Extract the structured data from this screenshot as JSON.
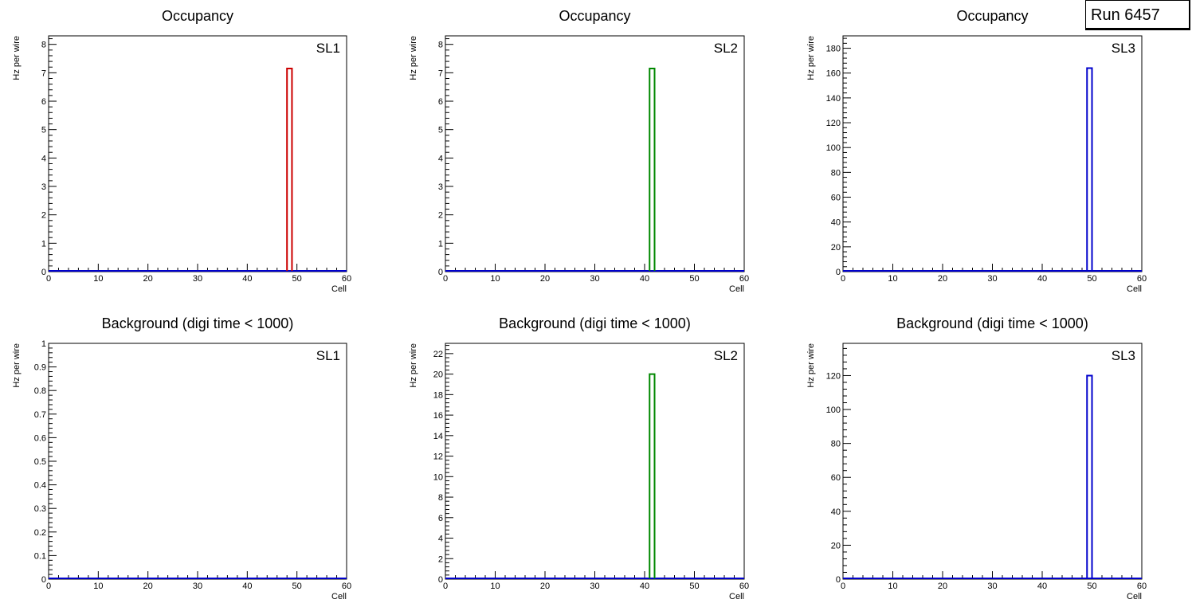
{
  "run_label": "Run 6457",
  "colors": {
    "SL1": "#cc0000",
    "SL2": "#008800",
    "SL3": "#0000cc",
    "axis": "#000000",
    "baseline": "#0000cc"
  },
  "chart_data": [
    {
      "type": "bar",
      "title": "Occupancy",
      "label": "SL1",
      "xlabel": "Cell",
      "ylabel": "Hz per wire",
      "xlim": [
        0,
        60
      ],
      "ylim": [
        0,
        8.3
      ],
      "xticks": [
        0,
        10,
        20,
        30,
        40,
        50,
        60
      ],
      "yticks": [
        0,
        1,
        2,
        3,
        4,
        5,
        6,
        7,
        8
      ],
      "bins": [
        {
          "x0": 48,
          "x1": 49,
          "value": 7.15
        }
      ],
      "color": "#cc0000"
    },
    {
      "type": "bar",
      "title": "Occupancy",
      "label": "SL2",
      "xlabel": "Cell",
      "ylabel": "Hz per wire",
      "xlim": [
        0,
        60
      ],
      "ylim": [
        0,
        8.3
      ],
      "xticks": [
        0,
        10,
        20,
        30,
        40,
        50,
        60
      ],
      "yticks": [
        0,
        1,
        2,
        3,
        4,
        5,
        6,
        7,
        8
      ],
      "bins": [
        {
          "x0": 41,
          "x1": 42,
          "value": 7.15
        }
      ],
      "color": "#008800"
    },
    {
      "type": "bar",
      "title": "Occupancy",
      "label": "SL3",
      "xlabel": "Cell",
      "ylabel": "Hz per wire",
      "xlim": [
        0,
        60
      ],
      "ylim": [
        0,
        190
      ],
      "xticks": [
        0,
        10,
        20,
        30,
        40,
        50,
        60
      ],
      "yticks": [
        0,
        20,
        40,
        60,
        80,
        100,
        120,
        140,
        160,
        180
      ],
      "bins": [
        {
          "x0": 49,
          "x1": 50,
          "value": 164
        }
      ],
      "color": "#0000cc"
    },
    {
      "type": "bar",
      "title": "Background (digi time < 1000)",
      "label": "SL1",
      "xlabel": "Cell",
      "ylabel": "Hz per wire",
      "xlim": [
        0,
        60
      ],
      "ylim": [
        0,
        1
      ],
      "xticks": [
        0,
        10,
        20,
        30,
        40,
        50,
        60
      ],
      "yticks": [
        0,
        0.1,
        0.2,
        0.3,
        0.4,
        0.5,
        0.6,
        0.7,
        0.8,
        0.9,
        1
      ],
      "bins": [],
      "color": "#cc0000"
    },
    {
      "type": "bar",
      "title": "Background (digi time < 1000)",
      "label": "SL2",
      "xlabel": "Cell",
      "ylabel": "Hz per wire",
      "xlim": [
        0,
        60
      ],
      "ylim": [
        0,
        23
      ],
      "xticks": [
        0,
        10,
        20,
        30,
        40,
        50,
        60
      ],
      "yticks": [
        0,
        2,
        4,
        6,
        8,
        10,
        12,
        14,
        16,
        18,
        20,
        22
      ],
      "bins": [
        {
          "x0": 41,
          "x1": 42,
          "value": 20
        }
      ],
      "color": "#008800"
    },
    {
      "type": "bar",
      "title": "Background (digi time < 1000)",
      "label": "SL3",
      "xlabel": "Cell",
      "ylabel": "Hz per wire",
      "xlim": [
        0,
        60
      ],
      "ylim": [
        0,
        139
      ],
      "xticks": [
        0,
        10,
        20,
        30,
        40,
        50,
        60
      ],
      "yticks": [
        0,
        20,
        40,
        60,
        80,
        100,
        120
      ],
      "bins": [
        {
          "x0": 49,
          "x1": 50,
          "value": 120
        }
      ],
      "color": "#0000cc"
    }
  ]
}
